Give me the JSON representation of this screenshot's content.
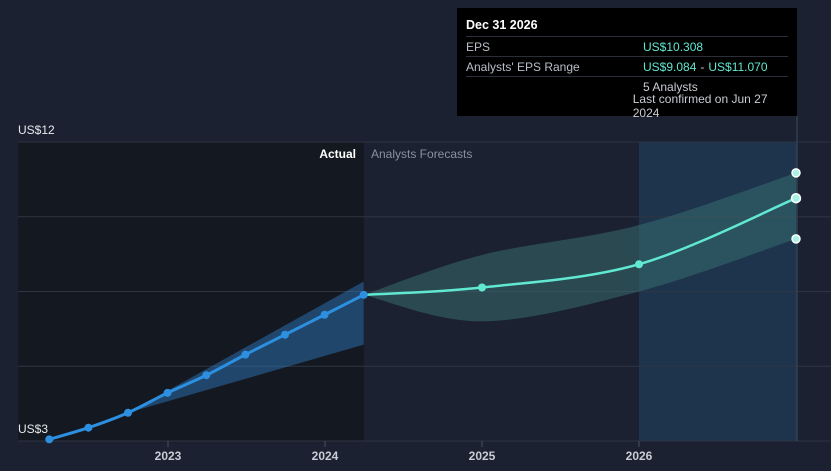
{
  "tooltip": {
    "date": "Dec 31 2026",
    "eps_label": "EPS",
    "eps_value": "US$10.308",
    "range_label": "Analysts' EPS Range",
    "range_low": "US$9.084",
    "range_sep": "-",
    "range_high": "US$11.070",
    "analysts": "5 Analysts",
    "confirmed": "Last confirmed on Jun 27 2024"
  },
  "colors": {
    "background": "#1b2130",
    "actual_region": "#141820",
    "actual_line": "#2d8fe0",
    "forecast_line": "#61e8d2",
    "forecast_band": "#3a6b6b",
    "highlight_band": "#1f3b55"
  },
  "chart_data": {
    "type": "line",
    "title": "",
    "xlabel": "",
    "ylabel": "",
    "ylim": [
      3,
      12
    ],
    "y_tick_labels": [
      "US$3",
      "US$12"
    ],
    "x_tick_labels": [
      "2023",
      "2024",
      "2025",
      "2026"
    ],
    "region_labels": {
      "actual": "Actual",
      "forecast": "Analysts Forecasts"
    },
    "grid": true,
    "series": [
      {
        "role": "actual",
        "x": [
          "2022-03-31",
          "2022-06-30",
          "2022-09-30",
          "2022-12-31",
          "2023-03-31",
          "2023-06-30",
          "2023-09-30",
          "2023-12-31",
          "2024-03-31"
        ],
        "y": [
          3.05,
          3.4,
          3.85,
          4.45,
          4.98,
          5.6,
          6.2,
          6.8,
          7.4
        ]
      },
      {
        "role": "actual_range",
        "x": [
          "2022-09-30",
          "2024-03-31"
        ],
        "low": [
          3.85,
          5.9
        ],
        "high": [
          3.85,
          7.8
        ]
      },
      {
        "role": "forecast",
        "x": [
          "2024-03-31",
          "2024-12-31",
          "2025-12-31",
          "2026-12-31"
        ],
        "y": [
          7.4,
          7.62,
          8.32,
          10.308
        ]
      },
      {
        "role": "forecast_range",
        "x": [
          "2024-03-31",
          "2024-12-31",
          "2025-12-31",
          "2026-12-31"
        ],
        "low": [
          7.4,
          6.6,
          7.5,
          9.084
        ],
        "high": [
          7.4,
          8.6,
          9.5,
          11.07
        ]
      }
    ]
  }
}
